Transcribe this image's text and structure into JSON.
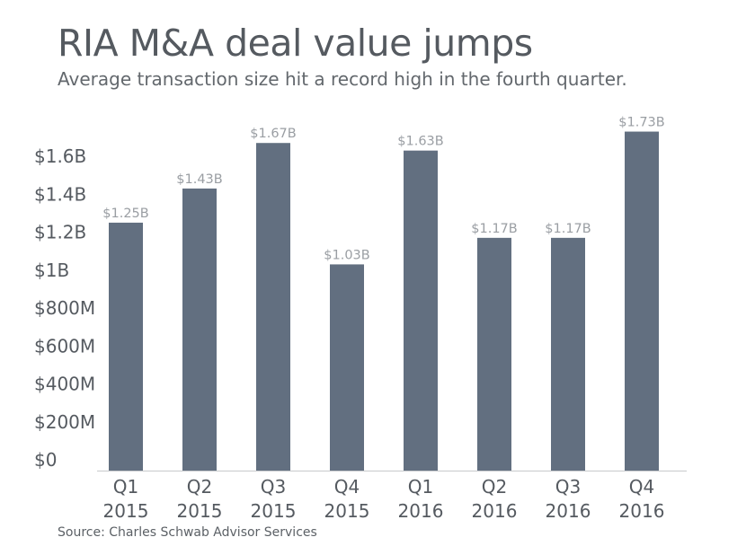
{
  "title": "RIA M&A deal value jumps",
  "subtitle": "Average transaction size hit a record high in the fourth quarter.",
  "source": "Source: Charles Schwab Advisor Services",
  "colors": {
    "bar": "#626f80",
    "axis": "#c7c9cc"
  },
  "chart_data": {
    "type": "bar",
    "title": "RIA M&A deal value jumps",
    "subtitle": "Average transaction size hit a record high in the fourth quarter.",
    "categories": [
      [
        "Q1",
        "2015"
      ],
      [
        "Q2",
        "2015"
      ],
      [
        "Q3",
        "2015"
      ],
      [
        "Q4",
        "2015"
      ],
      [
        "Q1",
        "2016"
      ],
      [
        "Q2",
        "2016"
      ],
      [
        "Q3",
        "2016"
      ],
      [
        "Q4",
        "2016"
      ]
    ],
    "values": [
      1.25,
      1.43,
      1.67,
      1.03,
      1.63,
      1.17,
      1.17,
      1.73
    ],
    "value_units": "billions of dollars",
    "data_labels": [
      "$1.25B",
      "$1.43B",
      "$1.67B",
      "$1.03B",
      "$1.63B",
      "$1.17B",
      "$1.17B",
      "$1.73B"
    ],
    "yticks": [
      0,
      0.2,
      0.4,
      0.6,
      0.8,
      1.0,
      1.2,
      1.4,
      1.6
    ],
    "ytick_labels": [
      "$0",
      "$200M",
      "$400M",
      "$600M",
      "$800M",
      "$1B",
      "$1.2B",
      "$1.4B",
      "$1.6B"
    ],
    "ylim": [
      0,
      1.6
    ],
    "xlabel": "",
    "ylabel": "",
    "grid": false,
    "legend": "none"
  }
}
